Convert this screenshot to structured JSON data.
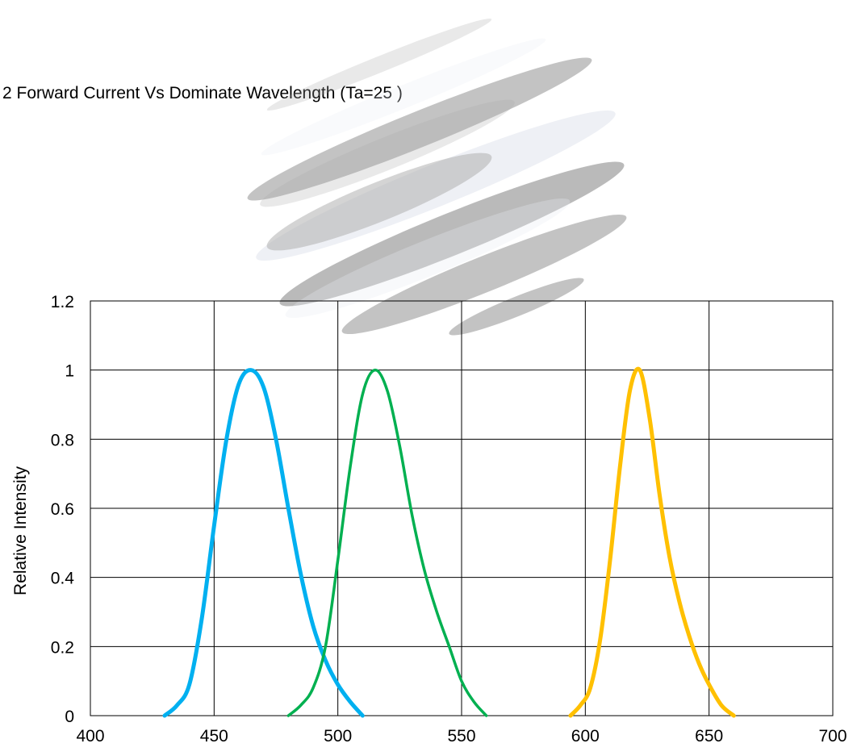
{
  "chart_data": {
    "type": "line",
    "title": "2 Forward Current Vs Dominate Wavelength (Ta=25    )",
    "xlabel": "",
    "ylabel": "Relative Intensity",
    "xlim": [
      400,
      700
    ],
    "ylim": [
      0,
      1.2
    ],
    "x_ticks": [
      "400",
      "450",
      "500",
      "550",
      "600",
      "650",
      "700"
    ],
    "y_ticks": [
      "0",
      "0.2",
      "0.4",
      "0.6",
      "0.8",
      "1",
      "1.2"
    ],
    "grid": true,
    "legend": "none",
    "series": [
      {
        "color": "#00b0f0",
        "x": [
          430,
          435,
          440,
          445,
          450,
          455,
          460,
          465,
          470,
          475,
          480,
          485,
          490,
          495,
          500,
          505,
          510
        ],
        "y": [
          0,
          0.03,
          0.09,
          0.28,
          0.55,
          0.8,
          0.96,
          1.0,
          0.95,
          0.8,
          0.6,
          0.41,
          0.26,
          0.16,
          0.09,
          0.04,
          0
        ]
      },
      {
        "color": "#00b050",
        "x": [
          480,
          485,
          490,
          495,
          500,
          505,
          510,
          515,
          520,
          525,
          530,
          535,
          540,
          545,
          550,
          555,
          560
        ],
        "y": [
          0,
          0.03,
          0.08,
          0.2,
          0.45,
          0.72,
          0.93,
          1.0,
          0.94,
          0.78,
          0.58,
          0.42,
          0.3,
          0.2,
          0.1,
          0.04,
          0
        ]
      },
      {
        "color": "#ffc000",
        "x": [
          594,
          598,
          602,
          606,
          610,
          614,
          618,
          622,
          626,
          630,
          634,
          638,
          642,
          646,
          650,
          655,
          660
        ],
        "y": [
          0,
          0.03,
          0.08,
          0.22,
          0.45,
          0.72,
          0.94,
          1.0,
          0.86,
          0.64,
          0.46,
          0.33,
          0.23,
          0.15,
          0.09,
          0.03,
          0
        ]
      }
    ]
  }
}
